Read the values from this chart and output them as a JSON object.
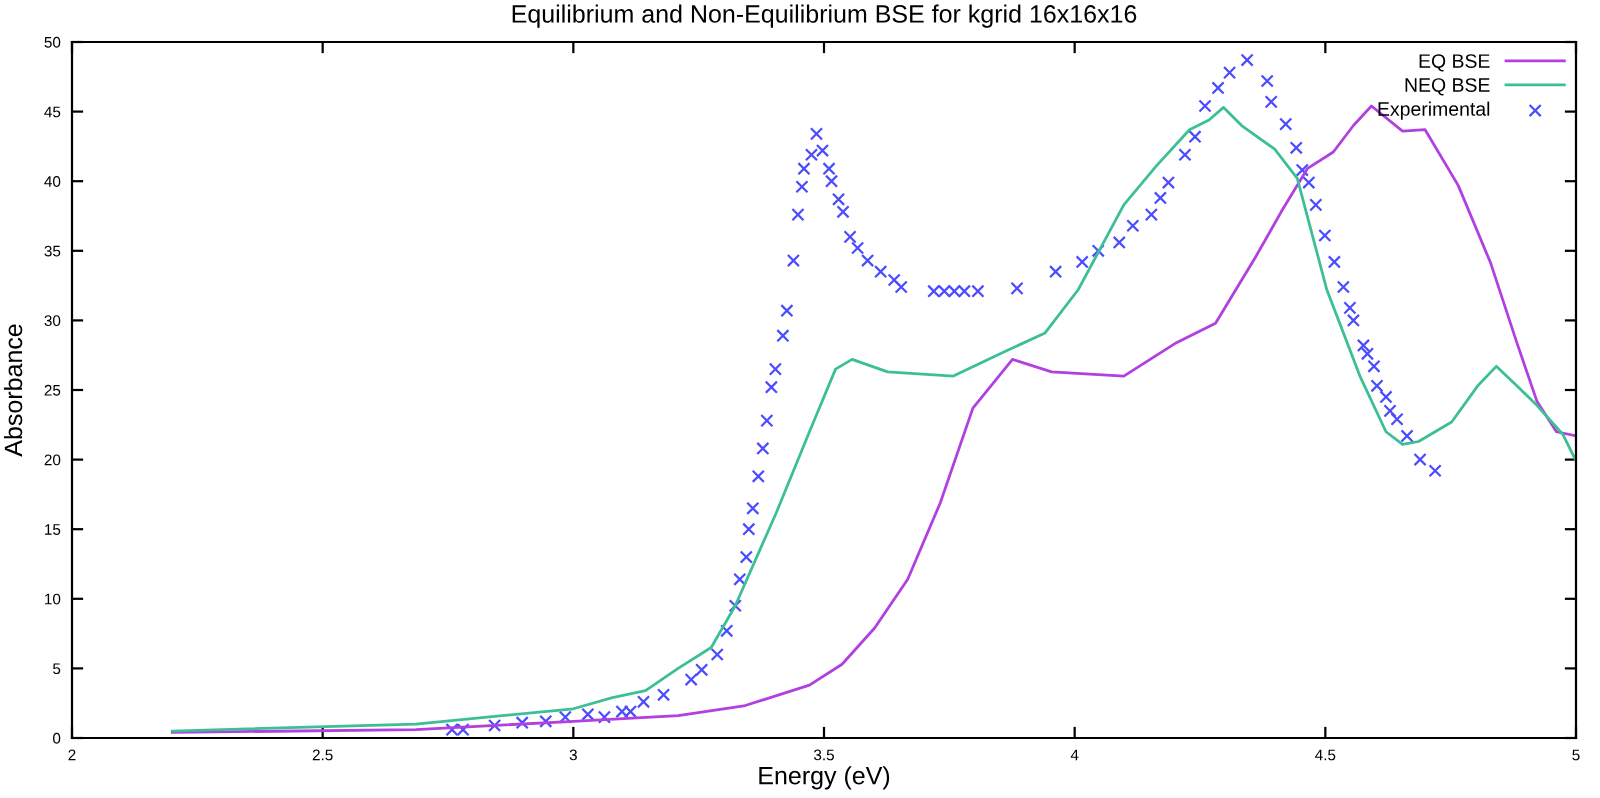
{
  "chart_data": {
    "type": "line",
    "title": "Equilibrium and Non-Equilibrium BSE for kgrid 16x16x16",
    "xlabel": "Energy (eV)",
    "ylabel": "Absorbance",
    "xlim": [
      2,
      5
    ],
    "ylim": [
      0,
      50
    ],
    "xticks": [
      2,
      2.5,
      3,
      3.5,
      4,
      4.5,
      5
    ],
    "yticks": [
      0,
      5,
      10,
      15,
      20,
      25,
      30,
      35,
      40,
      45,
      50
    ],
    "grid": false,
    "legend": "top right",
    "series": [
      {
        "name": "EQ BSE",
        "color": "#b23fe0",
        "marker": "none",
        "line_style": "solid",
        "x": [
          2.2,
          2.686,
          3.0,
          3.209,
          3.34,
          3.471,
          3.536,
          3.601,
          3.667,
          3.732,
          3.797,
          3.876,
          3.954,
          4.098,
          4.203,
          4.281,
          4.36,
          4.412,
          4.464,
          4.516,
          4.556,
          4.592,
          4.654,
          4.699,
          4.765,
          4.83,
          4.882,
          4.922,
          4.961,
          5.0
        ],
        "values": [
          0.4,
          0.6,
          1.2,
          1.6,
          2.3,
          3.8,
          5.3,
          7.9,
          11.4,
          16.9,
          23.7,
          27.2,
          26.3,
          26.0,
          28.4,
          29.8,
          34.5,
          37.8,
          40.9,
          42.1,
          44.0,
          45.4,
          43.6,
          43.7,
          39.7,
          34.1,
          28.4,
          24.2,
          22.0,
          21.7
        ]
      },
      {
        "name": "NEQ BSE",
        "color": "#3dbf96",
        "marker": "none",
        "line_style": "solid",
        "x": [
          2.2,
          2.686,
          3.0,
          3.078,
          3.144,
          3.209,
          3.275,
          3.323,
          3.405,
          3.471,
          3.523,
          3.556,
          3.627,
          3.758,
          3.863,
          3.941,
          4.007,
          4.098,
          4.163,
          4.229,
          4.268,
          4.297,
          4.333,
          4.399,
          4.444,
          4.503,
          4.569,
          4.621,
          4.654,
          4.686,
          4.752,
          4.804,
          4.841,
          4.882,
          4.922,
          4.974,
          5.0
        ],
        "values": [
          0.5,
          1.0,
          2.1,
          2.9,
          3.4,
          5.0,
          6.5,
          9.5,
          16.2,
          22.0,
          26.5,
          27.2,
          26.3,
          26.0,
          27.8,
          29.1,
          32.2,
          38.3,
          41.1,
          43.7,
          44.4,
          45.3,
          44.0,
          42.3,
          40.2,
          32.2,
          26.0,
          22.0,
          21.1,
          21.3,
          22.7,
          25.3,
          26.7,
          25.3,
          23.9,
          21.8,
          19.9
        ]
      },
      {
        "name": "Experimental",
        "type": "scatter",
        "color": "#4b4bff",
        "marker": "cross",
        "x": [
          2.758,
          2.78,
          2.843,
          2.898,
          2.945,
          2.984,
          3.029,
          3.062,
          3.097,
          3.114,
          3.14,
          3.18,
          3.235,
          3.256,
          3.287,
          3.306,
          3.323,
          3.332,
          3.345,
          3.35,
          3.358,
          3.369,
          3.378,
          3.386,
          3.395,
          3.403,
          3.418,
          3.426,
          3.439,
          3.448,
          3.456,
          3.46,
          3.475,
          3.485,
          3.497,
          3.51,
          3.515,
          3.529,
          3.538,
          3.552,
          3.567,
          3.587,
          3.613,
          3.64,
          3.654,
          3.719,
          3.74,
          3.76,
          3.78,
          3.807,
          3.885,
          3.962,
          4.015,
          4.047,
          4.089,
          4.116,
          4.153,
          4.171,
          4.187,
          4.22,
          4.24,
          4.26,
          4.286,
          4.309,
          4.344,
          4.384,
          4.392,
          4.421,
          4.442,
          4.454,
          4.467,
          4.481,
          4.499,
          4.518,
          4.536,
          4.549,
          4.556,
          4.576,
          4.584,
          4.597,
          4.603,
          4.621,
          4.629,
          4.643,
          4.663,
          4.689,
          4.719
        ],
        "values": [
          0.6,
          0.6,
          0.9,
          1.1,
          1.2,
          1.5,
          1.7,
          1.5,
          1.9,
          1.9,
          2.6,
          3.1,
          4.2,
          4.9,
          6.0,
          7.7,
          9.5,
          11.4,
          13.0,
          15.0,
          16.5,
          18.8,
          20.8,
          22.8,
          25.2,
          26.5,
          28.9,
          30.7,
          34.3,
          37.6,
          39.6,
          40.9,
          41.9,
          43.4,
          42.2,
          40.9,
          40.0,
          38.7,
          37.8,
          36.0,
          35.2,
          34.3,
          33.5,
          32.9,
          32.4,
          32.1,
          32.1,
          32.1,
          32.1,
          32.1,
          32.3,
          33.5,
          34.2,
          35.0,
          35.6,
          36.8,
          37.6,
          38.8,
          39.9,
          41.9,
          43.2,
          45.4,
          46.7,
          47.8,
          48.7,
          47.2,
          45.7,
          44.1,
          42.4,
          40.8,
          39.9,
          38.3,
          36.1,
          34.2,
          32.4,
          30.9,
          30.0,
          28.2,
          27.6,
          26.7,
          25.3,
          24.5,
          23.5,
          22.9,
          21.7,
          20.0,
          19.2
        ]
      }
    ]
  }
}
